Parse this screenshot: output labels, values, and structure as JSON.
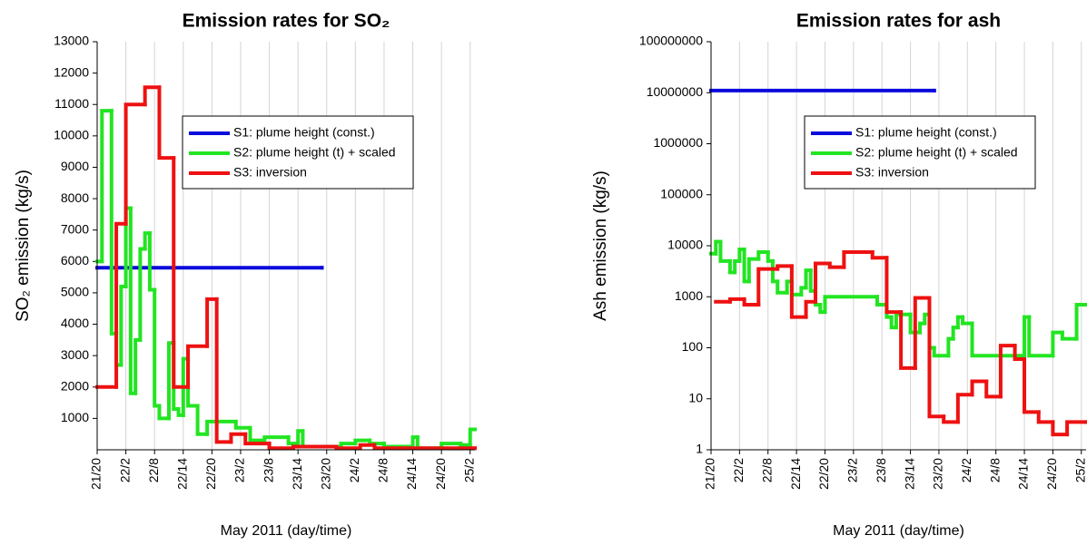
{
  "chart_data": [
    {
      "type": "step",
      "title": "Emission rates for SO₂",
      "xlabel": "May 2011 (day/time)",
      "ylabel": "SO₂ emission (kg/s)",
      "xlim": [
        "21/20",
        "25/3"
      ],
      "xticks": [
        "21/20",
        "22/2",
        "22/8",
        "22/14",
        "22/20",
        "23/2",
        "23/8",
        "23/14",
        "23/20",
        "24/2",
        "24/8",
        "24/14",
        "24/20",
        "25/2"
      ],
      "ylim": [
        0,
        13000
      ],
      "yticks": [
        1000,
        2000,
        3000,
        4000,
        5000,
        6000,
        7000,
        8000,
        9000,
        10000,
        11000,
        12000,
        13000
      ],
      "grid": true,
      "legend": "upper right",
      "series": [
        {
          "name": "S1: plume height (const.)",
          "color": "#0b0bdc",
          "x": [
            "21/20",
            "23/19"
          ],
          "values": [
            5800,
            5800
          ]
        },
        {
          "name": "S2: plume height (t) + scaled",
          "color": "#22e522",
          "x": [
            "21/20",
            "21/21",
            "21/23",
            "22/0",
            "22/1",
            "22/2",
            "22/3",
            "22/4",
            "22/5",
            "22/6",
            "22/7",
            "22/8",
            "22/9",
            "22/11",
            "22/12",
            "22/13",
            "22/14",
            "22/15",
            "22/17",
            "22/19",
            "23/1",
            "23/4",
            "23/7",
            "23/12",
            "23/14",
            "23/15",
            "23/23",
            "24/2",
            "24/5",
            "24/8",
            "24/14",
            "24/15",
            "24/20",
            "25/0",
            "25/2",
            "25/3"
          ],
          "values": [
            6000,
            10800,
            3700,
            2700,
            5200,
            7700,
            1800,
            3500,
            6400,
            6900,
            5100,
            1400,
            1000,
            3400,
            1300,
            1100,
            2900,
            1400,
            500,
            900,
            700,
            300,
            400,
            200,
            600,
            100,
            200,
            300,
            200,
            100,
            400,
            50,
            200,
            150,
            650,
            650
          ]
        },
        {
          "name": "S3: inversion",
          "color": "#ee1111",
          "x": [
            "21/20",
            "22/0",
            "22/2",
            "22/6",
            "22/9",
            "22/12",
            "22/15",
            "22/19",
            "22/21",
            "23/0",
            "23/3",
            "23/8",
            "23/13",
            "23/22",
            "24/3",
            "24/6",
            "25/3"
          ],
          "values": [
            2000,
            7200,
            11000,
            11550,
            9300,
            2000,
            3300,
            4800,
            250,
            500,
            200,
            50,
            100,
            50,
            150,
            50,
            50
          ]
        }
      ]
    },
    {
      "type": "step",
      "title": "Emission rates for ash",
      "xlabel": "May 2011 (day/time)",
      "ylabel": "Ash emission (kg/s)",
      "xlim": [
        "21/20",
        "25/3"
      ],
      "xticks": [
        "21/20",
        "22/2",
        "22/8",
        "22/14",
        "22/20",
        "23/2",
        "23/8",
        "23/14",
        "23/20",
        "24/2",
        "24/8",
        "24/14",
        "24/20",
        "25/2"
      ],
      "ylim": [
        1,
        100000000
      ],
      "log_y": true,
      "yticks": [
        1,
        10,
        100,
        1000,
        10000,
        100000,
        1000000,
        10000000,
        100000000
      ],
      "grid": true,
      "legend": "upper right",
      "series": [
        {
          "name": "S1: plume height (const.)",
          "color": "#0b0bdc",
          "x": [
            "21/20",
            "23/19"
          ],
          "values": [
            11000000,
            11000000
          ]
        },
        {
          "name": "S2: plume height (t) + scaled",
          "color": "#22e522",
          "x": [
            "21/20",
            "21/21",
            "21/22",
            "22/0",
            "22/1",
            "22/2",
            "22/3",
            "22/4",
            "22/6",
            "22/8",
            "22/9",
            "22/10",
            "22/12",
            "22/13",
            "22/15",
            "22/16",
            "22/17",
            "22/18",
            "22/19",
            "22/20",
            "23/7",
            "23/9",
            "23/10",
            "23/11",
            "23/14",
            "23/16",
            "23/17",
            "23/18",
            "23/19",
            "23/22",
            "23/23",
            "24/0",
            "24/1",
            "24/3",
            "24/14",
            "24/15",
            "24/20",
            "24/22",
            "25/1",
            "25/3"
          ],
          "values": [
            7000,
            12000,
            5000,
            3000,
            5000,
            8500,
            2000,
            5500,
            7500,
            5000,
            2000,
            1200,
            2000,
            1100,
            1500,
            3300,
            1300,
            700,
            500,
            1000,
            700,
            400,
            250,
            450,
            200,
            300,
            450,
            100,
            70,
            150,
            250,
            400,
            300,
            70,
            400,
            70,
            200,
            150,
            700,
            700
          ]
        },
        {
          "name": "S3: inversion",
          "color": "#ee1111",
          "x": [
            "21/21",
            "22/0",
            "22/3",
            "22/6",
            "22/10",
            "22/13",
            "22/16",
            "22/18",
            "22/21",
            "23/0",
            "23/6",
            "23/9",
            "23/12",
            "23/15",
            "23/18",
            "23/21",
            "24/0",
            "24/3",
            "24/6",
            "24/9",
            "24/12",
            "24/14",
            "24/17",
            "24/20",
            "24/23",
            "25/3"
          ],
          "values": [
            800,
            900,
            700,
            3500,
            4000,
            400,
            800,
            4500,
            3800,
            7500,
            5800,
            500,
            40,
            950,
            4.5,
            3.5,
            12,
            22,
            11,
            110,
            60,
            5.5,
            3.5,
            2,
            3.5,
            3.5
          ]
        }
      ]
    }
  ]
}
